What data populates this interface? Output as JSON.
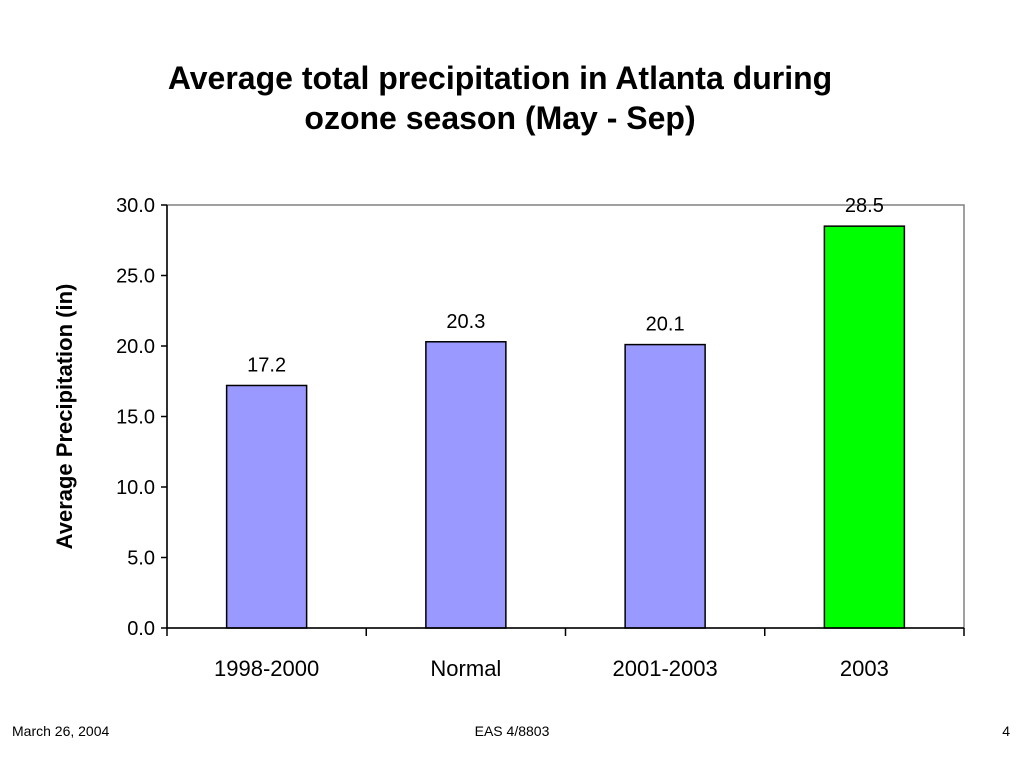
{
  "slide": {
    "title_lines": [
      "Average total precipitation in Atlanta during",
      "ozone season (May - Sep)"
    ]
  },
  "footer": {
    "date": "March 26, 2004",
    "course": "EAS 4/8803",
    "page": "4"
  },
  "chart_data": {
    "type": "bar",
    "categories": [
      "1998-2000",
      "Normal",
      "2001-2003",
      "2003"
    ],
    "values": [
      17.2,
      20.3,
      20.1,
      28.5
    ],
    "value_labels": [
      "17.2",
      "20.3",
      "20.1",
      "28.5"
    ],
    "bar_colors": [
      "#9999ff",
      "#9999ff",
      "#9999ff",
      "#00ff00"
    ],
    "title": "Average total precipitation in Atlanta during ozone season (May - Sep)",
    "xlabel": "",
    "ylabel": "Average Precipitation (in)",
    "ylim": [
      0,
      30
    ],
    "yticks": [
      "0.0",
      "5.0",
      "10.0",
      "15.0",
      "20.0",
      "25.0",
      "30.0"
    ],
    "grid": false,
    "legend": "none"
  }
}
